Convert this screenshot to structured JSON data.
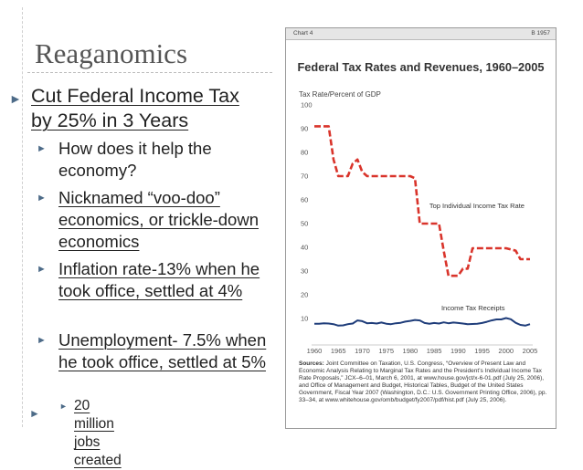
{
  "slide": {
    "title": "Reaganomics",
    "bullets": {
      "main": "Cut Federal Income Tax by 25% in 3 Years",
      "sub": [
        "How does it help the economy?",
        "Nicknamed “voo-doo” economics, or trickle-down economics",
        "Inflation rate-13% when he took office, settled at 4%",
        "Unemployment- 7.5% when he took office, settled at 5%"
      ],
      "subsub": "20 million jobs created"
    },
    "marker_color": "#4d6b88"
  },
  "chart_panel": {
    "header_left": "Chart 4",
    "header_right": "B 1957",
    "sources_label": "Sources:",
    "sources_text": "Joint Committee on Taxation, U.S. Congress, “Overview of Present Law and Economic Analysis Relating to Marginal Tax Rates and the President’s Individual Income Tax Rate Proposals,” JCX–6–01, March 6, 2001, at www.house.gov/jct/x-6-01.pdf (July 25, 2006), and Office of Management and Budget, Historical Tables, Budget of the United States Government, Fiscal Year 2007 (Washington, D.C.: U.S. Government Printing Office, 2006), pp. 33–34, at www.whitehouse.gov/omb/budget/fy2007/pdf/hist.pdf (July 25, 2006)."
  },
  "chart_data": {
    "type": "line",
    "title": "Federal Tax Rates and Revenues, 1960–2005",
    "ylabel": "Tax Rate/Percent of GDP",
    "xlim": [
      1960,
      2005
    ],
    "ylim": [
      0,
      100
    ],
    "x_ticks": [
      1960,
      1965,
      1970,
      1975,
      1980,
      1985,
      1990,
      1995,
      2000,
      2005
    ],
    "y_ticks": [
      10,
      20,
      30,
      40,
      50,
      60,
      70,
      80,
      90,
      100
    ],
    "series": [
      {
        "name": "Top Individual Income Tax Rate",
        "color": "#d9342b",
        "style": "dashed",
        "points": [
          [
            1960,
            91
          ],
          [
            1963,
            91
          ],
          [
            1964,
            77
          ],
          [
            1965,
            70
          ],
          [
            1967,
            70
          ],
          [
            1968,
            75.3
          ],
          [
            1969,
            77
          ],
          [
            1970,
            71.8
          ],
          [
            1971,
            70
          ],
          [
            1980,
            70
          ],
          [
            1981,
            69.1
          ],
          [
            1982,
            50
          ],
          [
            1986,
            50
          ],
          [
            1987,
            38.5
          ],
          [
            1988,
            28
          ],
          [
            1990,
            28
          ],
          [
            1991,
            31
          ],
          [
            1992,
            31
          ],
          [
            1993,
            39.6
          ],
          [
            2000,
            39.6
          ],
          [
            2001,
            39.1
          ],
          [
            2002,
            38.6
          ],
          [
            2003,
            35
          ],
          [
            2005,
            35
          ]
        ]
      },
      {
        "name": "Income Tax Receipts",
        "color": "#1f3d7a",
        "style": "solid",
        "points": [
          [
            1960,
            7.8
          ],
          [
            1961,
            7.8
          ],
          [
            1962,
            8
          ],
          [
            1963,
            7.9
          ],
          [
            1964,
            7.6
          ],
          [
            1965,
            7
          ],
          [
            1966,
            7.1
          ],
          [
            1967,
            7.6
          ],
          [
            1968,
            7.9
          ],
          [
            1969,
            9.2
          ],
          [
            1970,
            8.9
          ],
          [
            1971,
            8
          ],
          [
            1972,
            8.1
          ],
          [
            1973,
            7.9
          ],
          [
            1974,
            8.3
          ],
          [
            1975,
            7.8
          ],
          [
            1976,
            7.6
          ],
          [
            1977,
            8
          ],
          [
            1978,
            8.2
          ],
          [
            1979,
            8.7
          ],
          [
            1980,
            9
          ],
          [
            1981,
            9.4
          ],
          [
            1982,
            9.2
          ],
          [
            1983,
            8.1
          ],
          [
            1984,
            7.8
          ],
          [
            1985,
            8.1
          ],
          [
            1986,
            7.9
          ],
          [
            1987,
            8.4
          ],
          [
            1988,
            8
          ],
          [
            1989,
            8.3
          ],
          [
            1990,
            8.1
          ],
          [
            1991,
            7.9
          ],
          [
            1992,
            7.6
          ],
          [
            1993,
            7.7
          ],
          [
            1994,
            7.8
          ],
          [
            1995,
            8.1
          ],
          [
            1996,
            8.6
          ],
          [
            1997,
            9.2
          ],
          [
            1998,
            9.6
          ],
          [
            1999,
            9.6
          ],
          [
            2000,
            10.2
          ],
          [
            2001,
            9.7
          ],
          [
            2002,
            8.2
          ],
          [
            2003,
            7.3
          ],
          [
            2004,
            7
          ],
          [
            2005,
            7.6
          ]
        ]
      }
    ]
  }
}
